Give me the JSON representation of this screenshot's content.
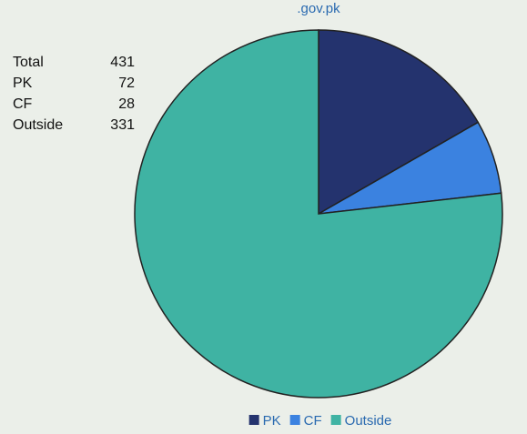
{
  "chart_data": {
    "type": "pie",
    "title": ".gov.pk",
    "categories": [
      "PK",
      "CF",
      "Outside"
    ],
    "values": [
      72,
      28,
      331
    ],
    "colors": [
      "#24336e",
      "#3b82e0",
      "#3fb3a3"
    ],
    "legend": "bottom"
  },
  "table": {
    "rows": [
      [
        "Total",
        431
      ],
      [
        "PK",
        72
      ],
      [
        "CF",
        28
      ],
      [
        "Outside",
        331
      ]
    ]
  }
}
